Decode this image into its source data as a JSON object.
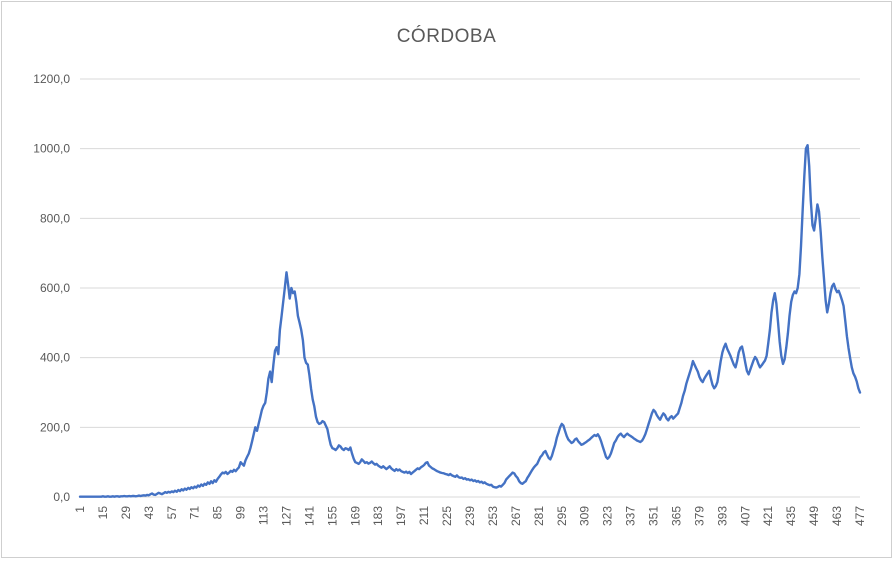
{
  "chart_data": {
    "type": "line",
    "title": "CÓRDOBA",
    "xlabel": "",
    "ylabel": "",
    "ylim": [
      0,
      1200
    ],
    "grid": "horizontal",
    "legend": "none",
    "x_tick_start": 1,
    "x_tick_step": 14,
    "x_tick_labels": [
      "1",
      "15",
      "29",
      "43",
      "57",
      "71",
      "85",
      "99",
      "113",
      "127",
      "141",
      "155",
      "169",
      "183",
      "197",
      "211",
      "225",
      "239",
      "253",
      "267",
      "281",
      "295",
      "309",
      "323",
      "337",
      "351",
      "365",
      "379",
      "393",
      "407",
      "421",
      "435",
      "449",
      "463",
      "477"
    ],
    "y_ticks": [
      0,
      200,
      400,
      600,
      800,
      1000,
      1200
    ],
    "y_tick_labels": [
      "0,0",
      "200,0",
      "400,0",
      "600,0",
      "800,0",
      "1000,0",
      "1200,0"
    ],
    "colors": {
      "line": "#4472C4",
      "grid": "#D9D9D9",
      "axis": "#D9D9D9",
      "text": "#595959",
      "border": "#CFCFCF"
    },
    "series": [
      {
        "name": "CÓRDOBA",
        "color": "#4472C4",
        "values": [
          1,
          1,
          1,
          1,
          1,
          1,
          1,
          1,
          1,
          1,
          1,
          1,
          1,
          1,
          2,
          1,
          1,
          2,
          1,
          1,
          2,
          1,
          2,
          2,
          1,
          2,
          2,
          3,
          2,
          2,
          3,
          2,
          3,
          3,
          2,
          3,
          4,
          3,
          4,
          5,
          4,
          6,
          5,
          8,
          10,
          7,
          6,
          9,
          12,
          10,
          8,
          11,
          14,
          12,
          15,
          13,
          16,
          14,
          18,
          15,
          20,
          17,
          22,
          19,
          24,
          21,
          26,
          23,
          28,
          25,
          30,
          27,
          33,
          30,
          36,
          32,
          38,
          35,
          42,
          38,
          45,
          40,
          48,
          44,
          52,
          58,
          65,
          70,
          68,
          72,
          66,
          70,
          75,
          72,
          78,
          74,
          80,
          85,
          100,
          95,
          90,
          105,
          115,
          125,
          140,
          160,
          180,
          200,
          190,
          210,
          230,
          250,
          262,
          270,
          300,
          340,
          360,
          330,
          380,
          420,
          430,
          410,
          480,
          520,
          560,
          600,
          645,
          610,
          570,
          600,
          585,
          590,
          560,
          520,
          500,
          480,
          450,
          400,
          385,
          380,
          350,
          310,
          280,
          260,
          230,
          215,
          210,
          212,
          218,
          215,
          205,
          195,
          170,
          150,
          140,
          138,
          135,
          140,
          148,
          145,
          138,
          135,
          140,
          138,
          135,
          142,
          125,
          110,
          100,
          98,
          95,
          100,
          108,
          103,
          98,
          100,
          96,
          98,
          102,
          97,
          93,
          95,
          90,
          87,
          84,
          88,
          84,
          80,
          84,
          88,
          82,
          78,
          75,
          80,
          76,
          79,
          74,
          72,
          70,
          73,
          69,
          72,
          66,
          70,
          74,
          78,
          82,
          80,
          85,
          88,
          92,
          98,
          100,
          90,
          86,
          82,
          80,
          77,
          74,
          72,
          70,
          69,
          68,
          66,
          65,
          63,
          66,
          62,
          60,
          58,
          62,
          57,
          55,
          56,
          52,
          54,
          50,
          51,
          48,
          50,
          46,
          48,
          44,
          46,
          42,
          44,
          40,
          42,
          38,
          36,
          34,
          35,
          30,
          28,
          27,
          29,
          32,
          30,
          35,
          40,
          50,
          55,
          60,
          65,
          70,
          68,
          60,
          55,
          45,
          40,
          38,
          42,
          45,
          55,
          62,
          70,
          78,
          85,
          90,
          95,
          105,
          115,
          120,
          128,
          132,
          122,
          112,
          108,
          118,
          135,
          150,
          170,
          185,
          200,
          210,
          205,
          190,
          175,
          165,
          160,
          155,
          158,
          165,
          168,
          160,
          155,
          150,
          152,
          155,
          158,
          162,
          165,
          170,
          174,
          178,
          175,
          180,
          172,
          160,
          145,
          130,
          115,
          110,
          115,
          125,
          140,
          155,
          162,
          172,
          178,
          182,
          176,
          172,
          178,
          182,
          178,
          175,
          172,
          168,
          165,
          162,
          160,
          158,
          162,
          170,
          180,
          195,
          210,
          225,
          240,
          250,
          245,
          235,
          228,
          222,
          232,
          240,
          235,
          225,
          220,
          228,
          232,
          225,
          230,
          235,
          240,
          255,
          270,
          290,
          305,
          325,
          340,
          355,
          370,
          390,
          380,
          370,
          360,
          345,
          335,
          330,
          340,
          348,
          355,
          362,
          340,
          322,
          312,
          318,
          330,
          360,
          390,
          415,
          430,
          440,
          425,
          415,
          405,
          392,
          380,
          372,
          390,
          415,
          428,
          432,
          410,
          385,
          362,
          352,
          365,
          378,
          392,
          402,
          395,
          382,
          372,
          378,
          385,
          392,
          405,
          440,
          480,
          530,
          565,
          585,
          555,
          500,
          445,
          405,
          382,
          395,
          430,
          470,
          520,
          560,
          580,
          590,
          585,
          600,
          640,
          720,
          820,
          920,
          1000,
          1010,
          950,
          850,
          780,
          765,
          800,
          840,
          820,
          760,
          690,
          630,
          565,
          530,
          555,
          585,
          605,
          612,
          598,
          588,
          592,
          580,
          565,
          548,
          505,
          462,
          428,
          398,
          372,
          355,
          345,
          332,
          312,
          300
        ]
      }
    ]
  }
}
